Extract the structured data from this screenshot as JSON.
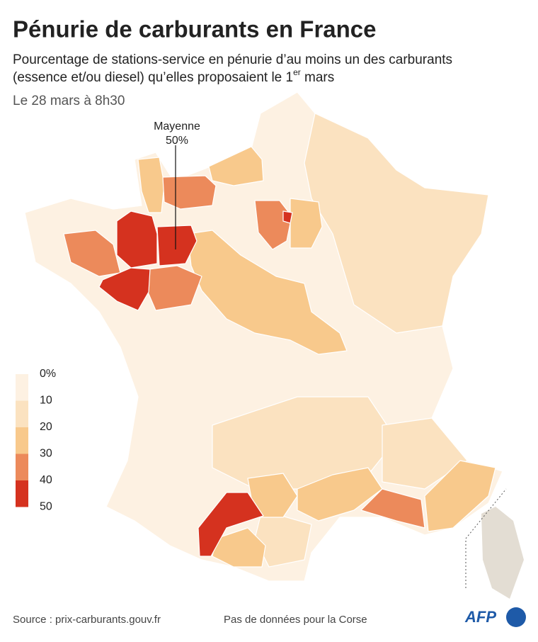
{
  "header": {
    "title": "Pénurie de carburants en France",
    "subtitle": {
      "line1": "Pourcentage de stations-service en pénurie d’au moins un des carburants",
      "line2": "(essence et/ou diesel) qu’elles proposaient le 1",
      "sup": "er",
      "end": " mars"
    },
    "date": "Le 28 mars à 8h30"
  },
  "legend": {
    "labels": [
      "0%",
      "10",
      "20",
      "30",
      "40",
      "50"
    ],
    "colors": [
      "#fdf1e2",
      "#fbe2c0",
      "#f8c98c",
      "#ec8a5b",
      "#d5321f"
    ]
  },
  "annotation": {
    "name": "Mayenne",
    "value": "50%"
  },
  "footer": {
    "source": "Source : prix-carburants.gouv.fr",
    "note": "Pas de données pour la Corse",
    "logo": "AFP"
  }
}
